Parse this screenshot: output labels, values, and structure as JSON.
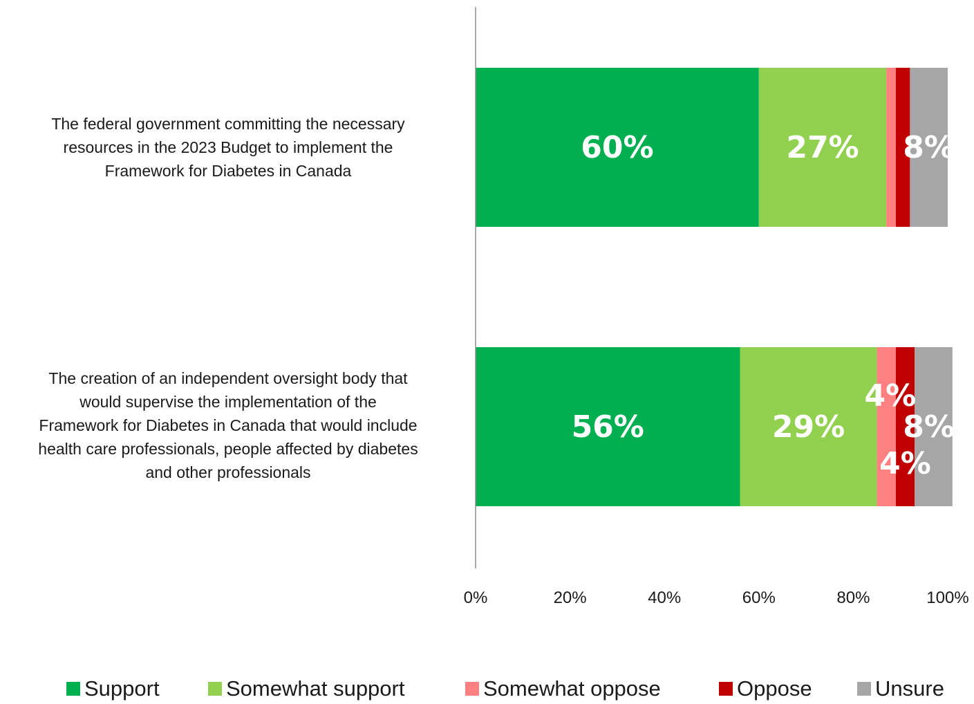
{
  "chart_data": {
    "type": "bar",
    "orientation": "horizontal",
    "stacked": true,
    "categories": [
      "The federal government committing the necessary resources in the 2023 Budget to implement the Framework for Diabetes in Canada",
      "The creation of an independent oversight body that would supervise the implementation of the Framework for Diabetes in Canada that would include health care professionals, people affected by diabetes and other professionals"
    ],
    "category_lines": [
      [
        "The federal government committing the necessary",
        "resources in the 2023 Budget to implement the",
        "Framework for Diabetes in Canada"
      ],
      [
        "The creation of an independent oversight body that",
        "would supervise the implementation of the",
        "Framework for Diabetes in Canada that would include",
        "health care professionals, people affected by diabetes",
        "and other professionals"
      ]
    ],
    "series": [
      {
        "name": "Support",
        "color": "#00b050",
        "values": [
          60,
          56
        ],
        "labels": [
          "60%",
          "56%"
        ]
      },
      {
        "name": "Somewhat support",
        "color": "#92d050",
        "values": [
          27,
          29
        ],
        "labels": [
          "27%",
          "29%"
        ]
      },
      {
        "name": "Somewhat oppose",
        "color": "#ff8080",
        "values": [
          2,
          4
        ],
        "labels": [
          "",
          "4%"
        ]
      },
      {
        "name": "Oppose",
        "color": "#c00000",
        "values": [
          3,
          4
        ],
        "labels": [
          "",
          "4%"
        ]
      },
      {
        "name": "Unsure",
        "color": "#a6a6a6",
        "values": [
          8,
          8
        ],
        "labels": [
          "8%",
          "8%"
        ]
      }
    ],
    "xlim": [
      0,
      100
    ],
    "xticks": [
      "0%",
      "20%",
      "40%",
      "60%",
      "80%",
      "100%"
    ],
    "grid": false,
    "legend": "bottom"
  }
}
